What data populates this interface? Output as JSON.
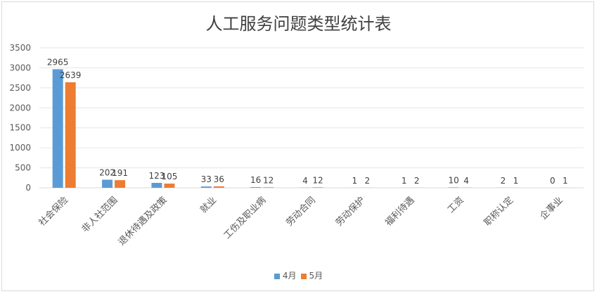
{
  "chart_data": {
    "type": "bar",
    "title": "人工服务问题类型统计表",
    "categories": [
      "社会保险",
      "非人社范围",
      "退休待遇及政策",
      "就业",
      "工伤及职业病",
      "劳动合同",
      "劳动保护",
      "福利待遇",
      "工资",
      "职称认定",
      "企事业"
    ],
    "series": [
      {
        "name": "4月",
        "color": "#5b9bd5",
        "values": [
          2965,
          202,
          123,
          33,
          16,
          4,
          1,
          1,
          10,
          2,
          0
        ]
      },
      {
        "name": "5月",
        "color": "#ed7d31",
        "values": [
          2639,
          191,
          105,
          36,
          12,
          12,
          2,
          2,
          4,
          1,
          1
        ]
      }
    ],
    "ylim": [
      0,
      3500
    ],
    "yticks": [
      0,
      500,
      1000,
      1500,
      2000,
      2500,
      3000,
      3500
    ],
    "grid": true,
    "legend_position": "bottom",
    "xlabel": "",
    "ylabel": ""
  }
}
